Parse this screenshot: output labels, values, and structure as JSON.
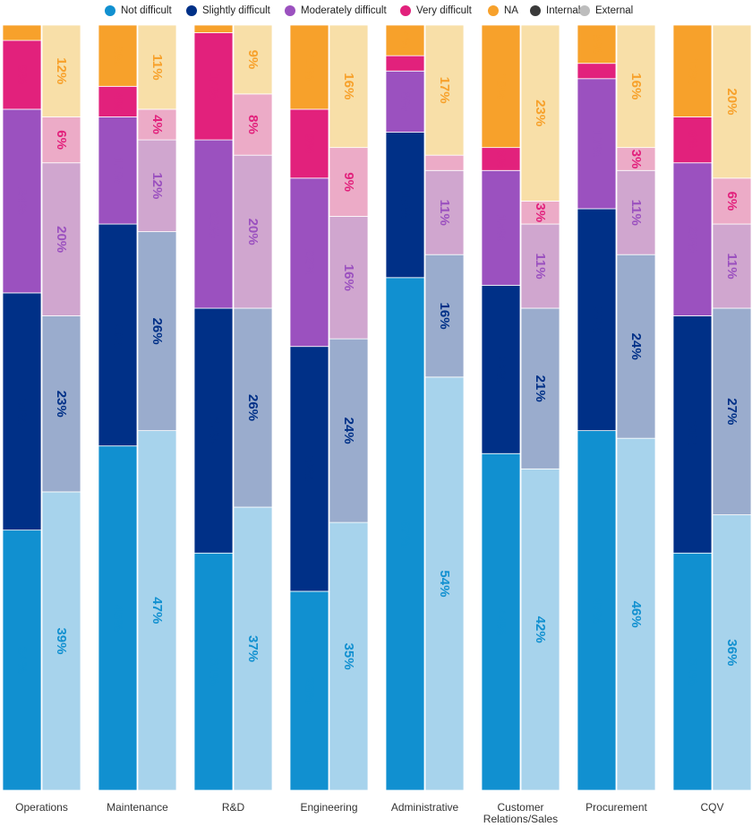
{
  "legend": [
    {
      "label": "Not difficult",
      "color": "#1190d0"
    },
    {
      "label": "Slightly difficult",
      "color": "#003087"
    },
    {
      "label": "Moderately difficult",
      "color": "#9b51bf"
    },
    {
      "label": "Very difficult",
      "color": "#e2217c"
    },
    {
      "label": "NA",
      "color": "#f7a12b"
    },
    {
      "label": "Internal",
      "color": "#3a3a3a"
    },
    {
      "label": "External",
      "color": "#bdbdbd"
    }
  ],
  "chart_data": {
    "type": "bar",
    "stacked": true,
    "normalized_percent": true,
    "stack_order_bottom_to_top": [
      "Not difficult",
      "Slightly difficult",
      "Moderately difficult",
      "Very difficult",
      "NA"
    ],
    "groups": [
      "Internal",
      "External"
    ],
    "categories": [
      "Operations",
      "Maintenance",
      "R&D",
      "Engineering",
      "Administrative",
      [
        "Customer",
        "Relations/Sales"
      ],
      "Procurement",
      "CQV"
    ],
    "internal": [
      [
        34,
        31,
        24,
        9,
        2
      ],
      [
        45,
        29,
        14,
        4,
        8
      ],
      [
        31,
        32,
        22,
        14,
        1
      ],
      [
        26,
        32,
        22,
        9,
        11
      ],
      [
        67,
        19,
        8,
        2,
        4
      ],
      [
        44,
        22,
        15,
        3,
        16
      ],
      [
        47,
        29,
        17,
        2,
        5
      ],
      [
        31,
        31,
        20,
        6,
        12
      ]
    ],
    "external": [
      [
        39,
        23,
        20,
        6,
        12
      ],
      [
        47,
        26,
        12,
        4,
        11
      ],
      [
        37,
        26,
        20,
        8,
        9
      ],
      [
        35,
        24,
        16,
        9,
        16
      ],
      [
        54,
        16,
        11,
        2,
        17
      ],
      [
        42,
        21,
        11,
        3,
        23
      ],
      [
        46,
        24,
        11,
        3,
        16
      ],
      [
        36,
        27,
        11,
        6,
        20
      ]
    ],
    "value_labels_internal": [
      [
        "34%",
        "31%",
        "24%",
        "9%",
        ""
      ],
      [
        "45%",
        "29%",
        "14%",
        "4%",
        "8%"
      ],
      [
        "31%",
        "32%",
        "22%",
        "14%",
        ""
      ],
      [
        "26%",
        "32%",
        "22%",
        "9%",
        "11%"
      ],
      [
        "67%",
        "19%",
        "8%",
        "",
        "4%"
      ],
      [
        "44%",
        "22%",
        "15%",
        "3%",
        "16%"
      ],
      [
        "47%",
        "29%",
        "17%",
        "",
        "5%"
      ],
      [
        "31%",
        "31%",
        "20%",
        "6%",
        "12%"
      ]
    ],
    "value_labels_external": [
      [
        "39%",
        "23%",
        "20%",
        "6%",
        "12%"
      ],
      [
        "47%",
        "26%",
        "12%",
        "4%",
        "11%"
      ],
      [
        "37%",
        "26%",
        "20%",
        "8%",
        "9%"
      ],
      [
        "35%",
        "24%",
        "16%",
        "9%",
        "16%"
      ],
      [
        "54%",
        "16%",
        "11%",
        "",
        "17%"
      ],
      [
        "42%",
        "21%",
        "11%",
        "3%",
        "23%"
      ],
      [
        "46%",
        "24%",
        "11%",
        "3%",
        "16%"
      ],
      [
        "36%",
        "27%",
        "11%",
        "6%",
        "20%"
      ]
    ],
    "colors_internal": [
      "#1190d0",
      "#003087",
      "#9b51bf",
      "#e2217c",
      "#f7a12b"
    ],
    "colors_external": [
      "#a7d3ec",
      "#9aaccd",
      "#d0a6cf",
      "#ecabc7",
      "#f8dfa8"
    ],
    "label_colors": [
      "#1190d0",
      "#003087",
      "#9b51bf",
      "#e2217c",
      "#f7a12b"
    ]
  }
}
